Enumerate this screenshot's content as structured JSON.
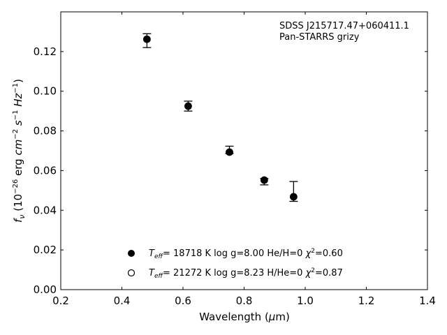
{
  "chart_data": {
    "type": "scatter",
    "xlabel": "Wavelength (μm)",
    "ylabel": "f_ν (10^-26 erg cm^-2 s^-1 Hz^-1)",
    "xlim": [
      0.2,
      1.4
    ],
    "ylim": [
      0.0,
      0.14
    ],
    "xticks": [
      0.2,
      0.4,
      0.6,
      0.8,
      1.0,
      1.2,
      1.4
    ],
    "yticks": [
      0.0,
      0.02,
      0.04,
      0.06,
      0.08,
      0.1,
      0.12
    ],
    "xtick_labels": [
      "0.2",
      "0.4",
      "0.6",
      "0.8",
      "1.0",
      "1.2",
      "1.4"
    ],
    "ytick_labels": [
      "0.00",
      "0.02",
      "0.04",
      "0.06",
      "0.08",
      "0.10",
      "0.12"
    ],
    "grid": false,
    "legend_position": "bottom-center",
    "annotation": [
      "SDSS J215717.47+060411.1",
      "Pan-STARRS grizy"
    ],
    "observed": {
      "x": [
        0.482,
        0.617,
        0.752,
        0.866,
        0.962
      ],
      "y": [
        0.1255,
        0.0925,
        0.0698,
        0.0553,
        0.0495
      ],
      "yerr_low": [
        0.0035,
        0.0025,
        0.0012,
        0.0025,
        0.005
      ],
      "yerr_high": [
        0.0035,
        0.0025,
        0.0025,
        0.0007,
        0.005
      ]
    },
    "series": [
      {
        "name": "T_eff= 18718 K  log g=8.00  He/H=0  χ²=0.60",
        "marker": "filled-circle",
        "x": [
          0.482,
          0.617,
          0.752,
          0.866,
          0.962
        ],
        "y": [
          0.1262,
          0.0925,
          0.0693,
          0.0552,
          0.0468
        ]
      },
      {
        "name": "T_eff= 21272 K  log g=8.23  H/He=0  χ²=0.87",
        "marker": "open-circle",
        "x": [
          0.482,
          0.617,
          0.752,
          0.866,
          0.962
        ],
        "y": [
          0.1262,
          0.0925,
          0.0693,
          0.0552,
          0.0468
        ]
      }
    ],
    "legend": [
      {
        "marker": "filled-circle",
        "teff": "= 18718 K  log g=8.00  He/H=0  ",
        "chi": "=0.60"
      },
      {
        "marker": "open-circle",
        "teff": "= 21272 K  log g=8.23  H/He=0  ",
        "chi": "=0.87"
      }
    ]
  }
}
